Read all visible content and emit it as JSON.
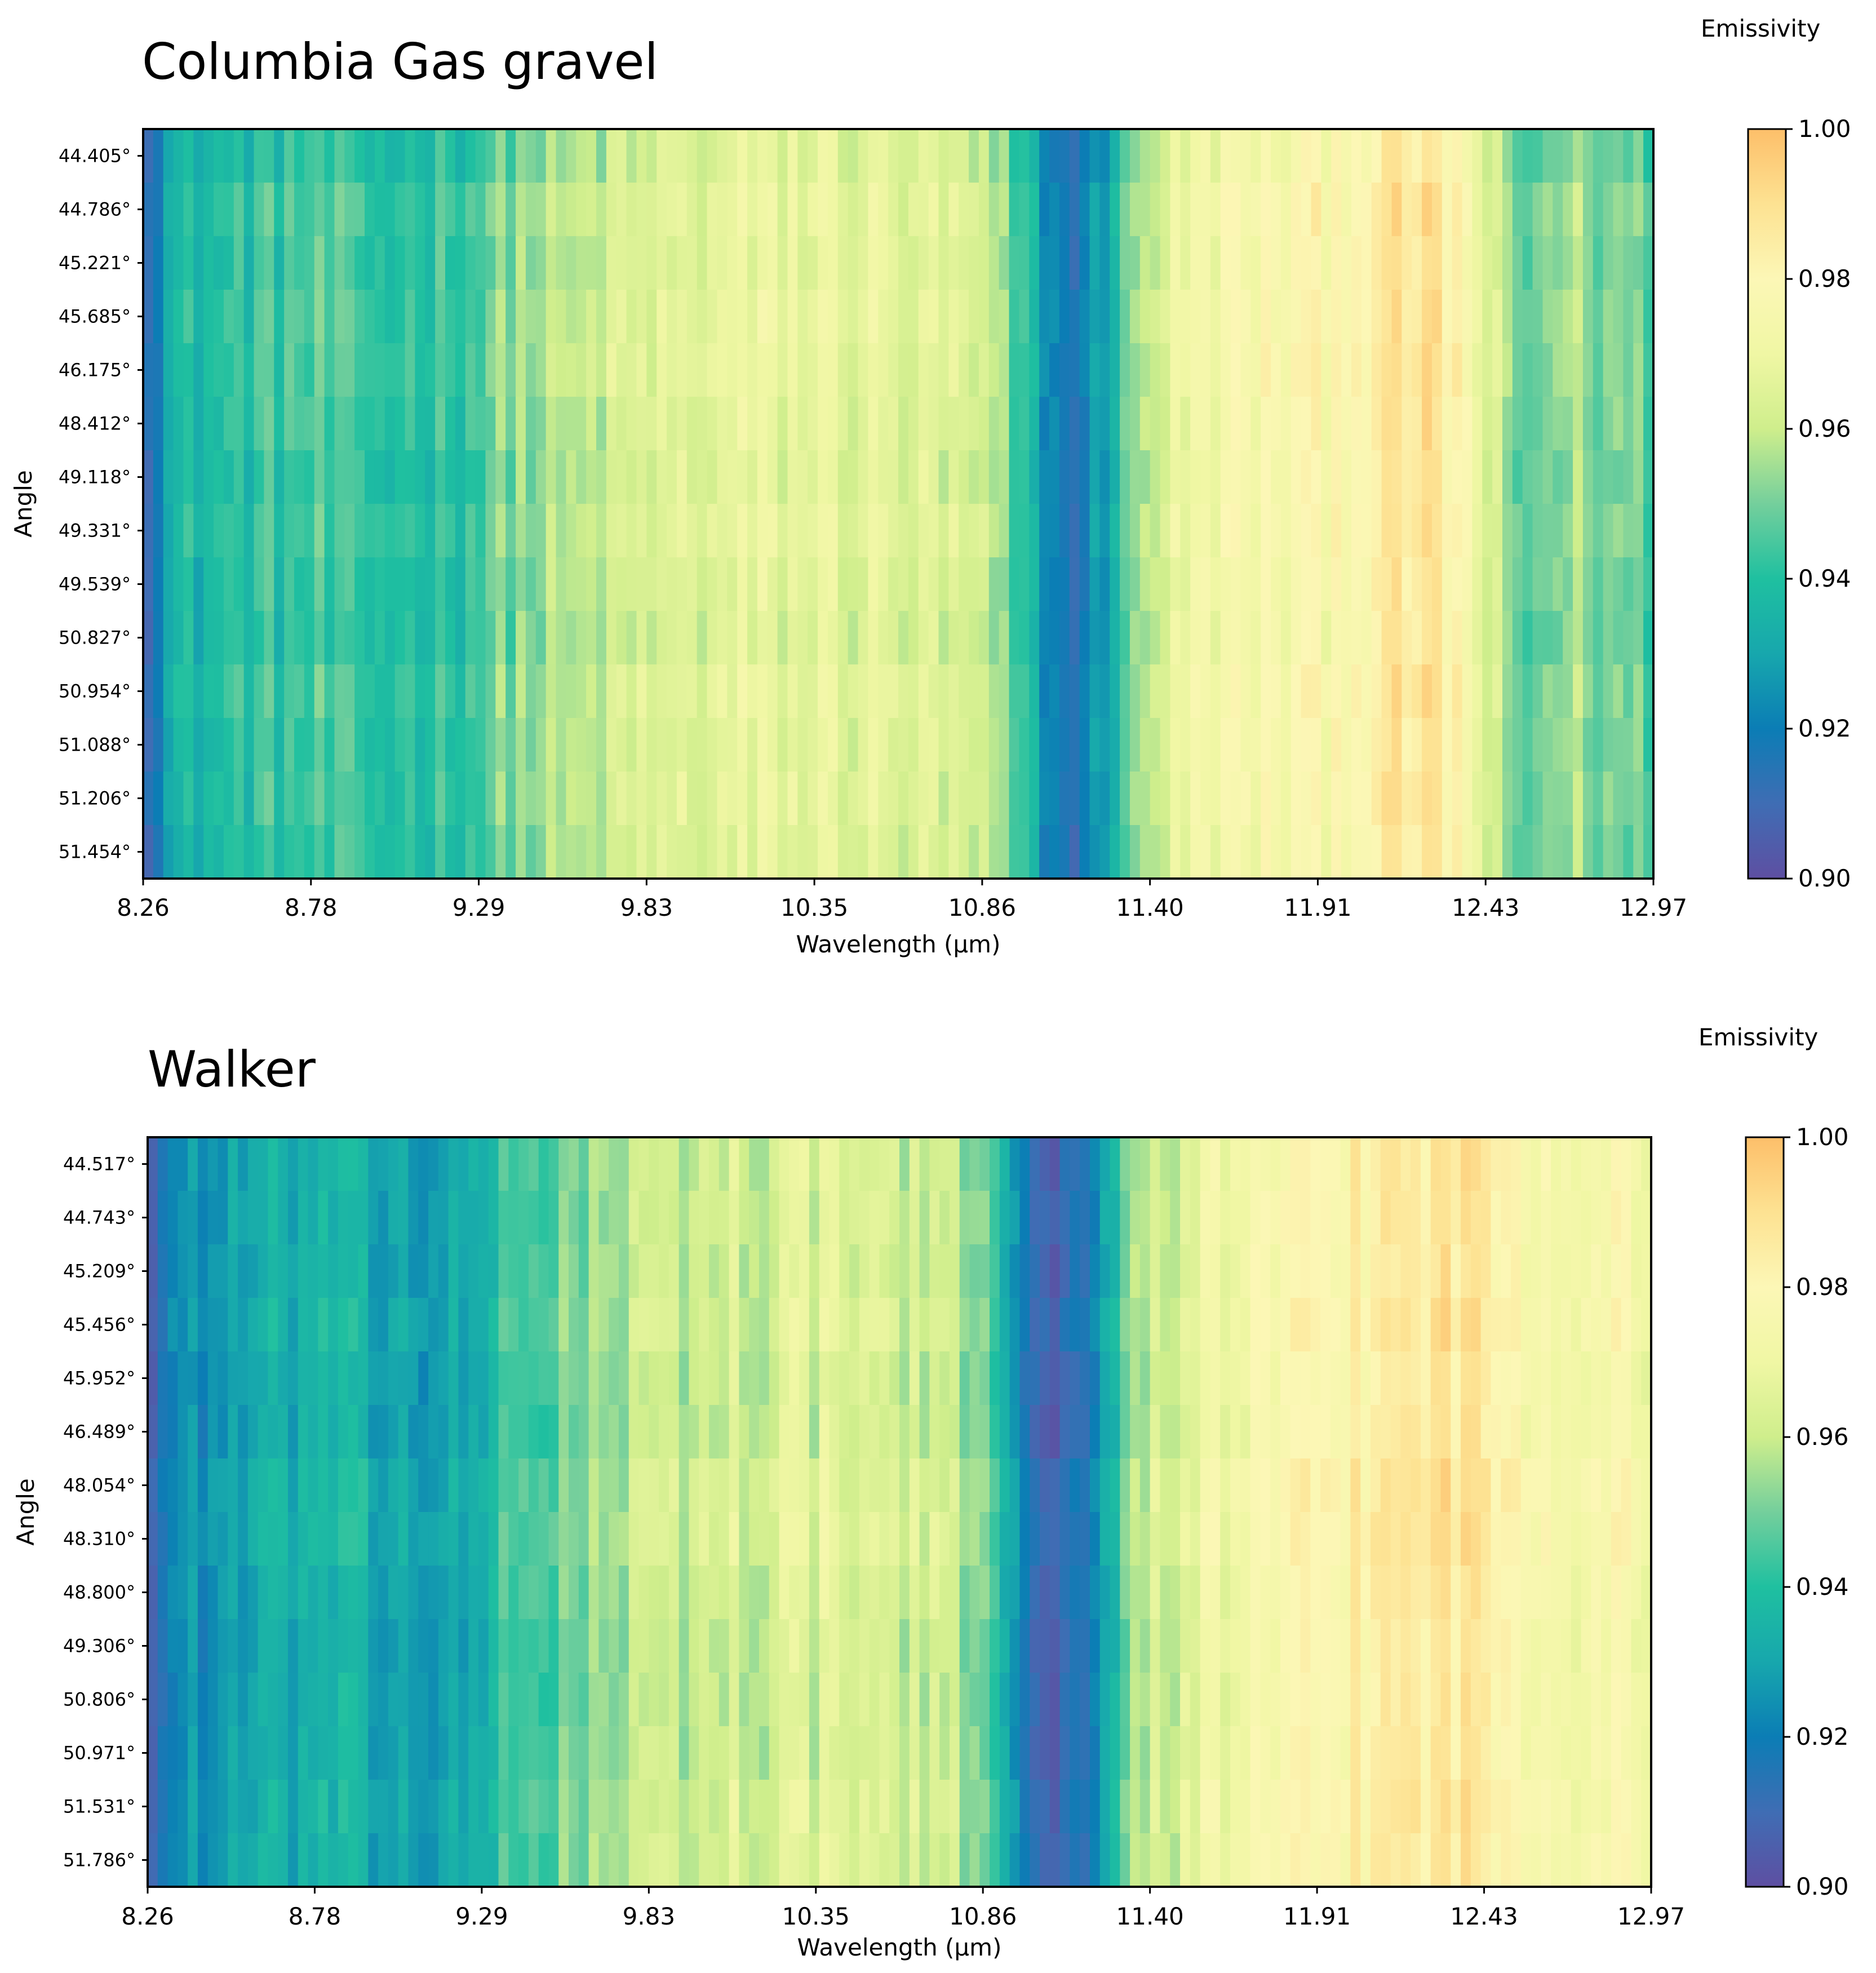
{
  "chart_data": [
    {
      "type": "heatmap",
      "title": "Columbia Gas gravel",
      "xlabel": "Wavelength (μm)",
      "ylabel": "Angle",
      "x_ticks": [
        "8.26",
        "8.78",
        "9.29",
        "9.83",
        "10.35",
        "10.86",
        "11.40",
        "11.91",
        "12.43",
        "12.97"
      ],
      "x_range": [
        8.26,
        12.97
      ],
      "y_categories": [
        "44.405°",
        "44.786°",
        "45.221°",
        "45.685°",
        "46.175°",
        "48.412°",
        "49.118°",
        "49.331°",
        "49.539°",
        "50.827°",
        "50.954°",
        "51.088°",
        "51.206°",
        "51.454°"
      ],
      "colorbar": {
        "label": "Emissivity",
        "range": [
          0.9,
          1.0
        ],
        "ticks": [
          "1.00",
          "0.98",
          "0.96",
          "0.94",
          "0.92",
          "0.90"
        ]
      },
      "wavelength_profile": [
        {
          "x": 8.26,
          "value": 0.914
        },
        {
          "x": 8.36,
          "value": 0.935
        },
        {
          "x": 8.55,
          "value": 0.94
        },
        {
          "x": 8.78,
          "value": 0.944
        },
        {
          "x": 9.0,
          "value": 0.94
        },
        {
          "x": 9.29,
          "value": 0.944
        },
        {
          "x": 9.4,
          "value": 0.952
        },
        {
          "x": 9.6,
          "value": 0.956
        },
        {
          "x": 9.83,
          "value": 0.963
        },
        {
          "x": 10.1,
          "value": 0.966
        },
        {
          "x": 10.35,
          "value": 0.967
        },
        {
          "x": 10.6,
          "value": 0.965
        },
        {
          "x": 10.86,
          "value": 0.96
        },
        {
          "x": 10.95,
          "value": 0.95
        },
        {
          "x": 11.05,
          "value": 0.93
        },
        {
          "x": 11.12,
          "value": 0.916
        },
        {
          "x": 11.2,
          "value": 0.918
        },
        {
          "x": 11.3,
          "value": 0.94
        },
        {
          "x": 11.4,
          "value": 0.962
        },
        {
          "x": 11.6,
          "value": 0.973
        },
        {
          "x": 11.91,
          "value": 0.977
        },
        {
          "x": 12.1,
          "value": 0.983
        },
        {
          "x": 12.25,
          "value": 0.987
        },
        {
          "x": 12.35,
          "value": 0.982
        },
        {
          "x": 12.43,
          "value": 0.968
        },
        {
          "x": 12.55,
          "value": 0.945
        },
        {
          "x": 12.7,
          "value": 0.955
        },
        {
          "x": 12.85,
          "value": 0.95
        },
        {
          "x": 12.97,
          "value": 0.947
        }
      ]
    },
    {
      "type": "heatmap",
      "title": "Walker",
      "xlabel": "Wavelength (μm)",
      "ylabel": "Angle",
      "x_ticks": [
        "8.26",
        "8.78",
        "9.29",
        "9.83",
        "10.35",
        "10.86",
        "11.40",
        "11.91",
        "12.43",
        "12.97"
      ],
      "x_range": [
        8.26,
        12.97
      ],
      "y_categories": [
        "44.517°",
        "44.743°",
        "45.209°",
        "45.456°",
        "45.952°",
        "46.489°",
        "48.054°",
        "48.310°",
        "48.800°",
        "49.306°",
        "50.806°",
        "50.971°",
        "51.531°",
        "51.786°"
      ],
      "colorbar": {
        "label": "Emissivity",
        "range": [
          0.9,
          1.0
        ],
        "ticks": [
          "1.00",
          "0.98",
          "0.96",
          "0.94",
          "0.92",
          "0.90"
        ]
      },
      "wavelength_profile": [
        {
          "x": 8.26,
          "value": 0.908
        },
        {
          "x": 8.36,
          "value": 0.925
        },
        {
          "x": 8.55,
          "value": 0.928
        },
        {
          "x": 8.78,
          "value": 0.935
        },
        {
          "x": 9.0,
          "value": 0.93
        },
        {
          "x": 9.29,
          "value": 0.928
        },
        {
          "x": 9.35,
          "value": 0.94
        },
        {
          "x": 9.6,
          "value": 0.952
        },
        {
          "x": 9.83,
          "value": 0.958
        },
        {
          "x": 10.1,
          "value": 0.962
        },
        {
          "x": 10.35,
          "value": 0.964
        },
        {
          "x": 10.6,
          "value": 0.962
        },
        {
          "x": 10.86,
          "value": 0.955
        },
        {
          "x": 10.95,
          "value": 0.935
        },
        {
          "x": 11.05,
          "value": 0.912
        },
        {
          "x": 11.12,
          "value": 0.907
        },
        {
          "x": 11.2,
          "value": 0.912
        },
        {
          "x": 11.3,
          "value": 0.945
        },
        {
          "x": 11.4,
          "value": 0.96
        },
        {
          "x": 11.6,
          "value": 0.97
        },
        {
          "x": 11.91,
          "value": 0.977
        },
        {
          "x": 12.1,
          "value": 0.984
        },
        {
          "x": 12.25,
          "value": 0.988
        },
        {
          "x": 12.43,
          "value": 0.986
        },
        {
          "x": 12.6,
          "value": 0.978
        },
        {
          "x": 12.8,
          "value": 0.976
        },
        {
          "x": 12.97,
          "value": 0.974
        }
      ]
    }
  ]
}
